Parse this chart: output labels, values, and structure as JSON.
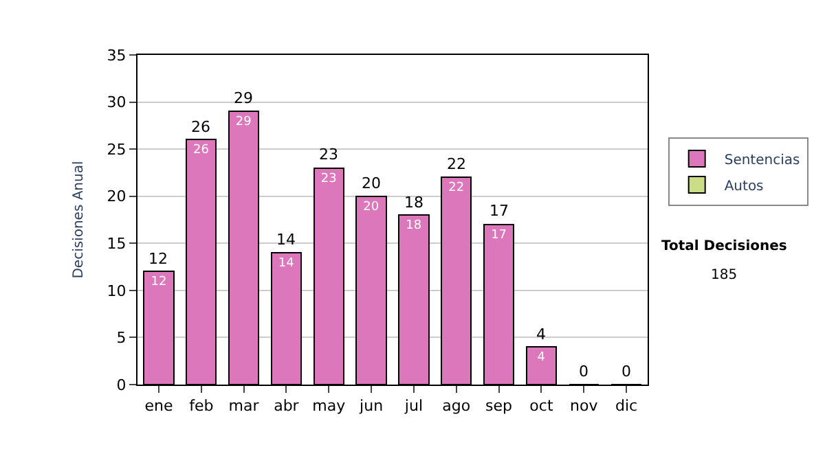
{
  "chart_data": {
    "type": "bar",
    "stacked": true,
    "ylabel": "Decisiones Anual",
    "categories": [
      "ene",
      "feb",
      "mar",
      "abr",
      "may",
      "jun",
      "jul",
      "ago",
      "sep",
      "oct",
      "nov",
      "dic"
    ],
    "series": [
      {
        "name": "Sentencias",
        "color": "#dd77bb",
        "values": [
          12,
          26,
          29,
          14,
          23,
          20,
          18,
          22,
          17,
          4,
          0,
          0
        ],
        "value_labels": [
          "12",
          "26",
          "29",
          "14",
          "23",
          "20",
          "18",
          "22",
          "17",
          "4",
          null,
          null
        ]
      },
      {
        "name": "Autos",
        "color": "#ccdd88",
        "values": [
          null,
          null,
          null,
          null,
          null,
          null,
          null,
          null,
          null,
          null,
          null,
          null
        ]
      }
    ],
    "totals": [
      "12",
      "26",
      "29",
      "14",
      "23",
      "20",
      "18",
      "22",
      "17",
      "4",
      "0",
      "0"
    ],
    "ylim": [
      0,
      35
    ],
    "yticks": [
      0,
      5,
      10,
      15,
      20,
      25,
      30,
      35
    ],
    "grid": "y",
    "legend": "right",
    "annotations": [
      "Total Decisiones",
      "185"
    ]
  }
}
